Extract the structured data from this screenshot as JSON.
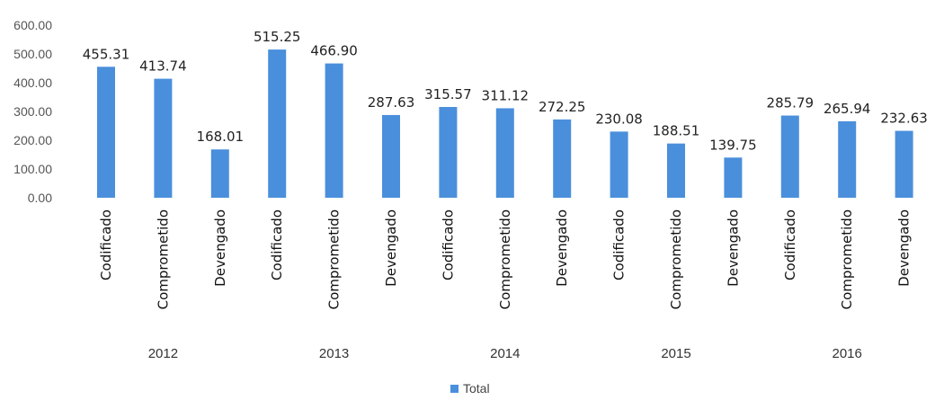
{
  "chart_data": {
    "type": "bar",
    "colors": {
      "bar": "#4a8fdc"
    },
    "ylim": [
      0,
      600
    ],
    "yticks": [
      "600.00",
      "500.00",
      "400.00",
      "300.00",
      "200.00",
      "100.00",
      "0.00"
    ],
    "groups": [
      "2012",
      "2013",
      "2014",
      "2015",
      "2016"
    ],
    "categories": [
      "Codificado",
      "Comprometido",
      "Devengado",
      "Codificado",
      "Comprometido",
      "Devengado",
      "Codificado",
      "Comprometido",
      "Devengado",
      "Codificado",
      "Comprometido",
      "Devengado",
      "Codificado",
      "Comprometido",
      "Devengado"
    ],
    "labels": [
      "455.31",
      "413.74",
      "168.01",
      "515.25",
      "466.90",
      "287.63",
      "315.57",
      "311.12",
      "272.25",
      "230.08",
      "188.51",
      "139.75",
      "285.79",
      "265.94",
      "232.63"
    ],
    "series": [
      {
        "name": "Total",
        "values": [
          455.31,
          413.74,
          168.01,
          515.25,
          466.9,
          287.63,
          315.57,
          311.12,
          272.25,
          230.08,
          188.51,
          139.75,
          285.79,
          265.94,
          232.63
        ]
      }
    ],
    "legend": "bottom",
    "grid": false
  }
}
